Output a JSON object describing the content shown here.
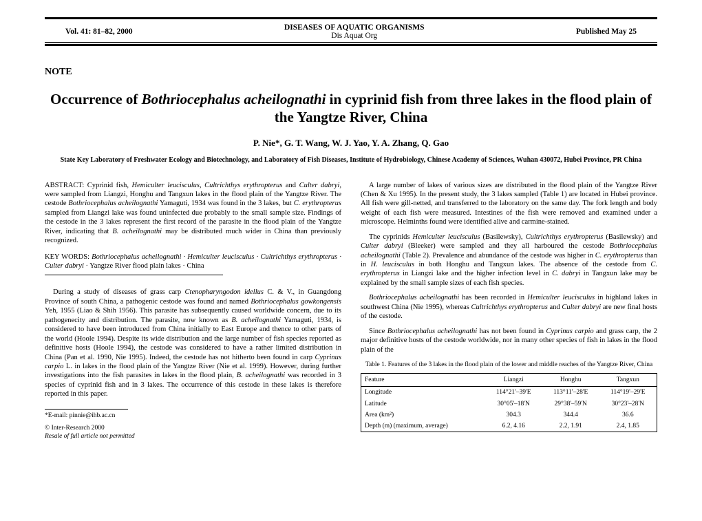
{
  "header": {
    "left": "Vol. 41: 81–82, 2000",
    "center_top": "DISEASES OF AQUATIC ORGANISMS",
    "center_bot": "Dis Aquat Org",
    "right": "Published May 25"
  },
  "note": "NOTE",
  "title_html": "Occurrence of <span class='ital'>Bothriocephalus acheilognathi</span> in cyprinid fish from three lakes in the flood plain of the Yangtze River, China",
  "authors": "P. Nie*, G. T. Wang, W. J. Yao, Y. A. Zhang, Q. Gao",
  "affiliation": "State Key Laboratory of Freshwater Ecology and Biotechnology, and Laboratory of Fish Diseases, Institute of Hydrobiology, Chinese Academy of Sciences, Wuhan 430072, Hubei Province, PR China",
  "abstract_html": "ABSTRACT: Cyprinid fish, <span class='ital'>Hemiculter leucisculus, Cultrichthys erythropterus</span> and <span class='ital'>Culter dabryi</span>, were sampled from Liangzi, Honghu and Tangxun lakes in the flood plain of the Yangtze River. The cestode <span class='ital'>Bothriocephalus acheilognathi</span> Yamaguti, 1934 was found in the 3 lakes, but <span class='ital'>C. erythropterus</span> sampled from Liangzi lake was found uninfected due probably to the small sample size. Findings of the cestode in the 3 lakes represent the first record of the parasite in the flood plain of the Yangtze River, indicating that <span class='ital'>B. acheilognathi</span> may be distributed much wider in China than previously recognized.",
  "keywords_html": "KEY WORDS: <span class='ital'>Bothriocephalus acheilognathi · Hemiculter leucisculus · Cultrichthys erythropterus · Culter dabryi</span> · Yangtze River flood plain lakes · China",
  "left_body_html": "During a study of diseases of grass carp <span class='ital'>Ctenopharyngodon idellus</span> C. & V., in Guangdong Province of south China, a pathogenic cestode was found and named <span class='ital'>Bothriocephalus gowkongensis</span> Yeh, 1955 (Liao & Shih 1956). This parasite has subsequently caused worldwide concern, due to its pathogenecity and distribution. The parasite, now known as <span class='ital'>B. acheilognathi</span> Yamaguti, 1934, is considered to have been introduced from China initially to East Europe and thence to other parts of the world (Hoole 1994). Despite its wide distribution and the large number of fish species reported as definitive hosts (Hoole 1994), the cestode was considered to have a rather limited distribution in China (Pan et al. 1990, Nie 1995). Indeed, the cestode has not hitherto been found in carp <span class='ital'>Cyprinus carpio</span> L. in lakes in the flood plain of the Yangtze River (Nie et al. 1999). However, during further investigations into the fish parasites in lakes in the flood plain, <span class='ital'>B. acheilognathi</span> was recorded in 3 species of cyprinid fish and in 3 lakes. The occurrence of this cestode in these lakes is therefore reported in this paper.",
  "email": "*E-mail: pinnie@ihb.ac.cn",
  "copyright": "© Inter-Research 2000",
  "copyright_sub": "Resale of full article not permitted",
  "right_p1_html": "A large number of lakes of various sizes are distributed in the flood plain of the Yangtze River (Chen & Xu 1995). In the present study, the 3 lakes sampled (Table 1) are located in Hubei province. All fish were gill-netted, and transferred to the laboratory on the same day. The fork length and body weight of each fish were measured. Intestines of the fish were removed and examined under a microscope. Helminths found were identified alive and carmine-stained.",
  "right_p2_html": "The cyprinids <span class='ital'>Hemiculter leucisculus</span> (Basilewsky), <span class='ital'>Cultrichthys erythropterus</span> (Basilewsky) and <span class='ital'>Culter dabryi</span> (Bleeker) were sampled and they all harboured the cestode <span class='ital'>Bothriocephalus acheilognathi</span> (Table 2). Prevalence and abundance of the cestode was higher in <span class='ital'>C. erythropterus</span> than in <span class='ital'>H. leucisculus</span> in both Honghu and Tangxun lakes. The absence of the cestode from <span class='ital'>C. erythropterus</span> in Liangzi lake and the higher infection level in <span class='ital'>C. dabryi</span> in Tangxun lake may be explained by the small sample sizes of each fish species.",
  "right_p3_html": "<span class='ital'>Bothriocephalus acheilognathi</span> has been recorded in <span class='ital'>Hemiculter leucisculus</span> in highland lakes in southwest China (Nie 1995), whereas <span class='ital'>Cultrichthys erythropterus</span> and <span class='ital'>Culter dabryi</span> are new final hosts of the cestode.",
  "right_p4_html": "Since <span class='ital'>Bothriocephalus acheilognathi</span> has not been found in <span class='ital'>Cyprinus carpio</span> and grass carp, the 2 major definitive hosts of the cestode worldwide, nor in many other species of fish in lakes in the flood plain of the",
  "table": {
    "caption": "Table 1. Features of the 3 lakes in the flood plain of the lower and middle reaches of the Yangtze River, China",
    "columns": [
      "Feature",
      "Liangzi",
      "Honghu",
      "Tangxun"
    ],
    "rows": [
      [
        "Longitude",
        "114°21'–39'E",
        "113°11'–28'E",
        "114°19'–29'E"
      ],
      [
        "Latitude",
        "30°05'–18'N",
        "29°38'–59'N",
        "30°23'–28'N"
      ],
      [
        "Area (km²)",
        "304.3",
        "344.4",
        "36.6"
      ],
      [
        "Depth (m) (maximum, average)",
        "6.2, 4.16",
        "2.2, 1.91",
        "2.4, 1.85"
      ]
    ]
  }
}
